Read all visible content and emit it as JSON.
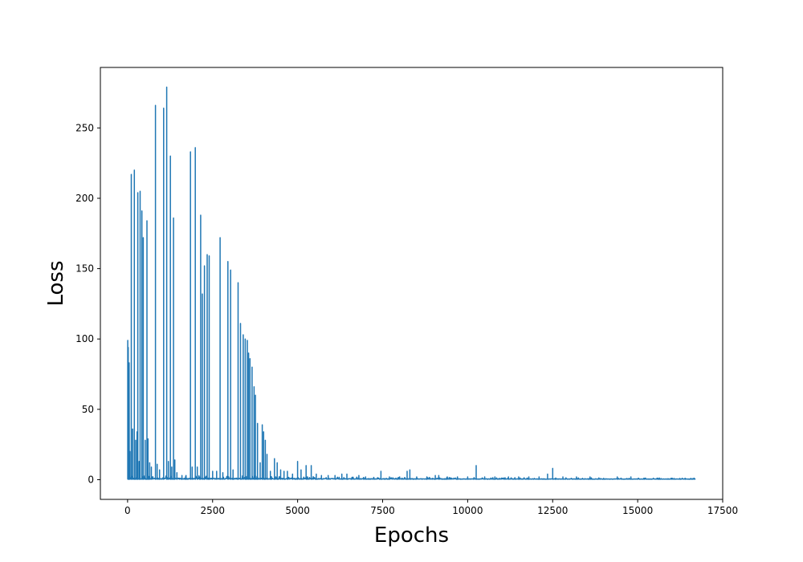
{
  "chart_data": {
    "type": "line",
    "title": "",
    "xlabel": "Epochs",
    "ylabel": "Loss",
    "xlim": [
      -800,
      17500
    ],
    "ylim": [
      -14,
      293
    ],
    "xticks": [
      0,
      2500,
      5000,
      7500,
      10000,
      12500,
      15000,
      17500
    ],
    "yticks": [
      0,
      50,
      100,
      150,
      200,
      250
    ],
    "xtick_labels": [
      "0",
      "2500",
      "5000",
      "7500",
      "10000",
      "12500",
      "15000",
      "17500"
    ],
    "ytick_labels": [
      "0",
      "50",
      "100",
      "150",
      "200",
      "250"
    ],
    "grid": false,
    "legend": null,
    "series": [
      {
        "color": "#1f77b4",
        "x_max": 16700,
        "baseline": 0.3,
        "spikes": [
          [
            5,
            99
          ],
          [
            20,
            94
          ],
          [
            45,
            83
          ],
          [
            70,
            20
          ],
          [
            110,
            217
          ],
          [
            150,
            36
          ],
          [
            200,
            220
          ],
          [
            240,
            28
          ],
          [
            280,
            34
          ],
          [
            300,
            204
          ],
          [
            340,
            13
          ],
          [
            370,
            205
          ],
          [
            420,
            191
          ],
          [
            460,
            172
          ],
          [
            520,
            28
          ],
          [
            570,
            184
          ],
          [
            600,
            29
          ],
          [
            650,
            12
          ],
          [
            700,
            9
          ],
          [
            820,
            266
          ],
          [
            870,
            11
          ],
          [
            940,
            7
          ],
          [
            1060,
            264
          ],
          [
            1150,
            279
          ],
          [
            1200,
            13
          ],
          [
            1260,
            230
          ],
          [
            1300,
            9
          ],
          [
            1350,
            186
          ],
          [
            1390,
            14
          ],
          [
            1450,
            5
          ],
          [
            1600,
            3
          ],
          [
            1720,
            3
          ],
          [
            1850,
            233
          ],
          [
            1900,
            9
          ],
          [
            1990,
            236
          ],
          [
            2050,
            9
          ],
          [
            2150,
            188
          ],
          [
            2200,
            132
          ],
          [
            2260,
            152
          ],
          [
            2340,
            160
          ],
          [
            2400,
            159
          ],
          [
            2500,
            6
          ],
          [
            2620,
            6
          ],
          [
            2720,
            172
          ],
          [
            2800,
            5
          ],
          [
            2950,
            155
          ],
          [
            3030,
            149
          ],
          [
            3100,
            7
          ],
          [
            3250,
            140
          ],
          [
            3320,
            111
          ],
          [
            3400,
            103
          ],
          [
            3460,
            100
          ],
          [
            3520,
            99
          ],
          [
            3560,
            90
          ],
          [
            3600,
            86
          ],
          [
            3660,
            80
          ],
          [
            3720,
            66
          ],
          [
            3760,
            60
          ],
          [
            3820,
            40
          ],
          [
            3900,
            12
          ],
          [
            3960,
            39
          ],
          [
            4000,
            34
          ],
          [
            4050,
            28
          ],
          [
            4100,
            18
          ],
          [
            4200,
            6
          ],
          [
            4320,
            15
          ],
          [
            4400,
            12
          ],
          [
            4500,
            7
          ],
          [
            4600,
            6
          ],
          [
            4700,
            6
          ],
          [
            4850,
            4
          ],
          [
            5000,
            13
          ],
          [
            5100,
            7
          ],
          [
            5250,
            10
          ],
          [
            5400,
            10
          ],
          [
            5550,
            4
          ],
          [
            5700,
            3
          ],
          [
            5900,
            3
          ],
          [
            6100,
            3
          ],
          [
            6300,
            4
          ],
          [
            6450,
            4
          ],
          [
            6800,
            3
          ],
          [
            7000,
            2
          ],
          [
            7450,
            6
          ],
          [
            7700,
            2
          ],
          [
            8000,
            2
          ],
          [
            8220,
            6
          ],
          [
            8300,
            7
          ],
          [
            8500,
            2
          ],
          [
            8800,
            2
          ],
          [
            9050,
            3
          ],
          [
            9150,
            3
          ],
          [
            9400,
            2
          ],
          [
            9700,
            2
          ],
          [
            10000,
            2
          ],
          [
            10250,
            10
          ],
          [
            10500,
            2
          ],
          [
            10800,
            2
          ],
          [
            11200,
            2
          ],
          [
            11500,
            2
          ],
          [
            11800,
            2
          ],
          [
            12100,
            2
          ],
          [
            12350,
            4
          ],
          [
            12500,
            8
          ],
          [
            12800,
            2
          ],
          [
            13200,
            2
          ],
          [
            13600,
            2
          ],
          [
            14000,
            1
          ],
          [
            14400,
            2
          ],
          [
            14800,
            2
          ],
          [
            15200,
            1
          ],
          [
            15600,
            1
          ],
          [
            16000,
            1
          ],
          [
            16400,
            1
          ]
        ],
        "noise_envelope": [
          [
            0,
            2.5
          ],
          [
            2000,
            2.5
          ],
          [
            4000,
            2.5
          ],
          [
            5000,
            2
          ],
          [
            7000,
            1.5
          ],
          [
            10000,
            1.2
          ],
          [
            13000,
            1
          ],
          [
            16700,
            0.8
          ]
        ]
      }
    ]
  }
}
